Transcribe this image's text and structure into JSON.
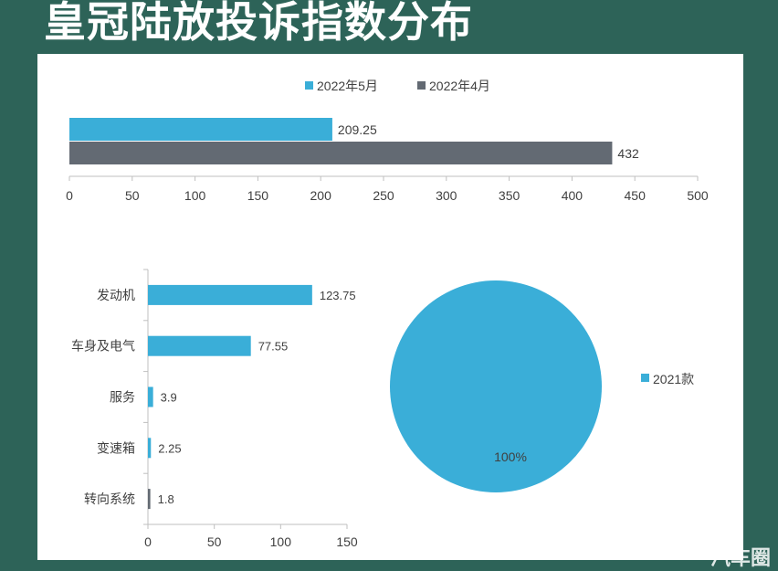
{
  "page": {
    "title": "皇冠陆放投诉指数分布"
  },
  "watermark": "汽车圈",
  "colors": {
    "background": "#2d6358",
    "series_may": "#3aaed8",
    "series_apr": "#636a73",
    "axis": "#bfbfbf",
    "text": "#404040"
  },
  "chart_data": [
    {
      "type": "bar",
      "orientation": "horizontal",
      "title": "",
      "legend": {
        "position": "top",
        "entries": [
          "2022年5月",
          "2022年4月"
        ]
      },
      "series": [
        {
          "name": "2022年5月",
          "values": [
            209.25
          ],
          "color": "#3aaed8"
        },
        {
          "name": "2022年4月",
          "values": [
            432
          ],
          "color": "#636a73"
        }
      ],
      "data_labels": [
        "209.25",
        "432"
      ],
      "xlim": [
        0,
        500
      ],
      "ticks": [
        "0",
        "50",
        "100",
        "150",
        "200",
        "250",
        "300",
        "350",
        "400",
        "450",
        "500"
      ],
      "grid": false
    },
    {
      "type": "bar",
      "orientation": "horizontal",
      "title": "",
      "categories": [
        "发动机",
        "车身及电气",
        "服务",
        "变速箱",
        "转向系统"
      ],
      "values": [
        123.75,
        77.55,
        3.9,
        2.25,
        1.8
      ],
      "data_labels": [
        "123.75",
        "77.55",
        "3.9",
        "2.25",
        "1.8"
      ],
      "colors": [
        "#3aaed8",
        "#3aaed8",
        "#3aaed8",
        "#3aaed8",
        "#636a73"
      ],
      "xlim": [
        0,
        150
      ],
      "ticks": [
        "0",
        "50",
        "100",
        "150"
      ],
      "grid": false
    },
    {
      "type": "pie",
      "title": "",
      "slices": [
        {
          "label": "2021款",
          "value": 100,
          "data_label": "100%",
          "color": "#3aaed8"
        }
      ],
      "legend": {
        "position": "right",
        "entries": [
          "2021款"
        ]
      }
    }
  ]
}
